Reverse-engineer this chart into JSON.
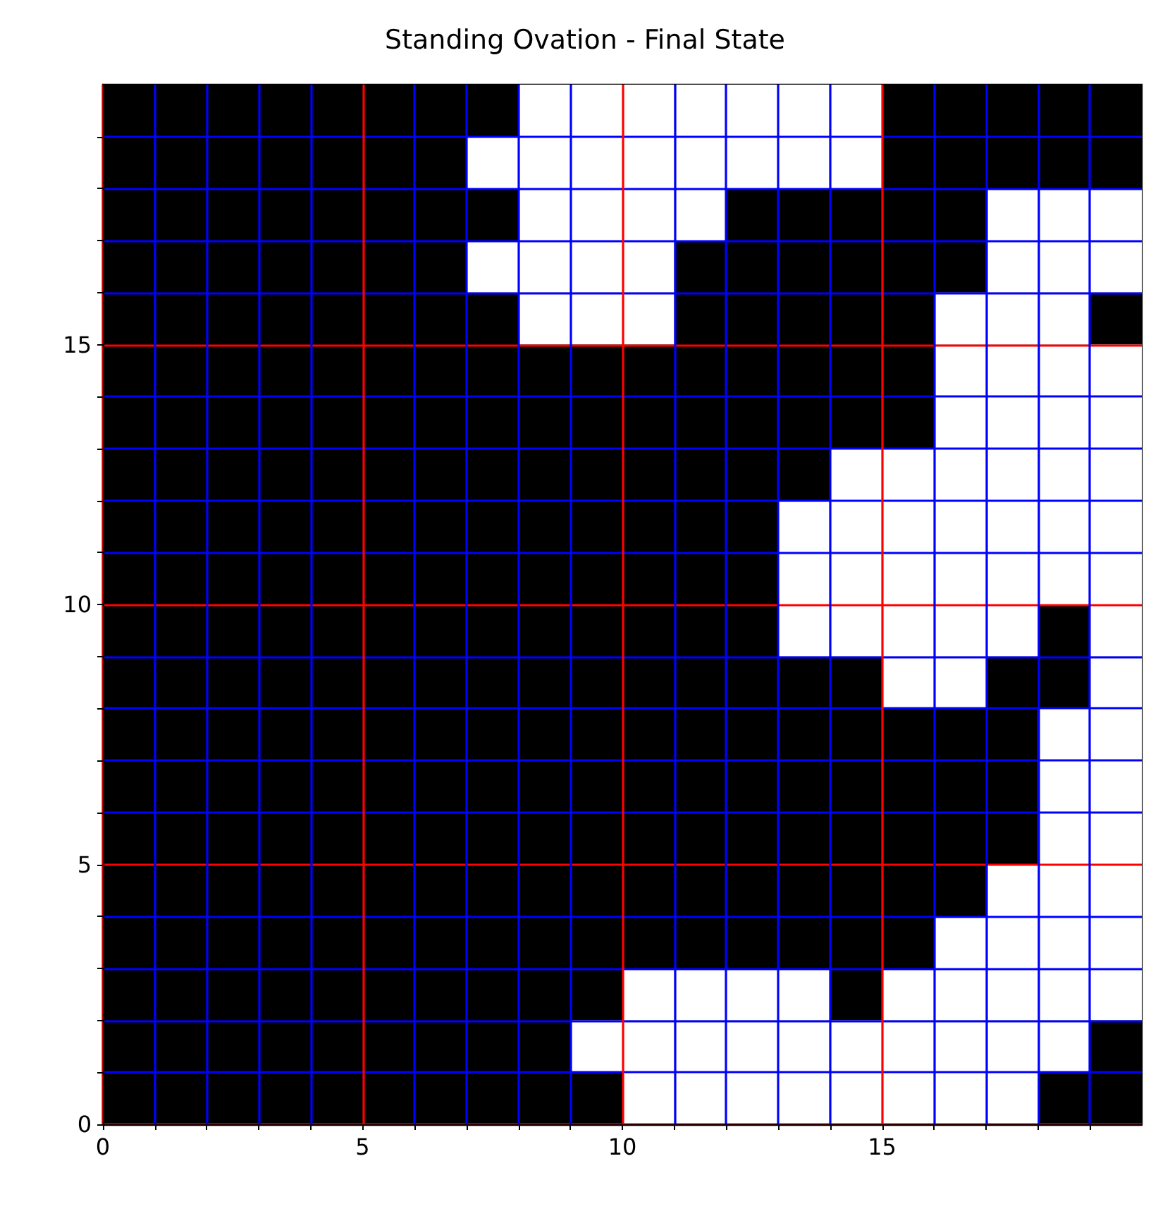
{
  "chart_data": {
    "type": "scatter",
    "title": "Standing Ovation - Final State",
    "xlim": [
      0,
      20
    ],
    "ylim": [
      0,
      20
    ],
    "xticks": [
      0,
      {
        "value": 1,
        "label": null
      },
      {
        "value": 2,
        "label": null
      },
      {
        "value": 3,
        "label": null
      },
      {
        "value": 4,
        "label": null
      },
      5,
      {
        "value": 6,
        "label": null
      },
      {
        "value": 7,
        "label": null
      },
      {
        "value": 8,
        "label": null
      },
      {
        "value": 9,
        "label": null
      },
      10,
      {
        "value": 11,
        "label": null
      },
      {
        "value": 12,
        "label": null
      },
      {
        "value": 13,
        "label": null
      },
      {
        "value": 14,
        "label": null
      },
      15,
      {
        "value": 16,
        "label": null
      },
      {
        "value": 17,
        "label": null
      },
      {
        "value": 18,
        "label": null
      },
      {
        "value": 19,
        "label": null
      }
    ],
    "yticks": [
      0,
      {
        "value": 1,
        "label": null
      },
      {
        "value": 2,
        "label": null
      },
      {
        "value": 3,
        "label": null
      },
      {
        "value": 4,
        "label": null
      },
      5,
      {
        "value": 6,
        "label": null
      },
      {
        "value": 7,
        "label": null
      },
      {
        "value": 8,
        "label": null
      },
      {
        "value": 9,
        "label": null
      },
      10,
      {
        "value": 11,
        "label": null
      },
      {
        "value": 12,
        "label": null
      },
      {
        "value": 13,
        "label": null
      },
      {
        "value": 14,
        "label": null
      },
      15,
      {
        "value": 16,
        "label": null
      },
      {
        "value": 17,
        "label": null
      },
      {
        "value": 18,
        "label": null
      },
      {
        "value": 19,
        "label": null
      }
    ],
    "grid": true,
    "marker": "square",
    "series": [
      {
        "color": "#ffffff",
        "x": [
          10.5,
          11.5,
          12.5,
          13.5,
          14.5,
          15.5,
          16.5,
          17.5,
          9.5,
          10.5,
          11.5,
          12.5,
          13.5,
          14.5,
          15.5,
          16.5,
          17.5,
          18.5,
          10.5,
          11.5,
          12.5,
          13.5,
          15.5,
          16.5,
          17.5,
          18.5,
          19.5,
          16.5,
          17.5,
          18.5,
          19.5,
          17.5,
          18.5,
          19.5,
          18.5,
          19.5,
          18.5,
          19.5,
          18.5,
          19.5,
          15.5,
          16.5,
          19.5,
          13.5,
          14.5,
          15.5,
          16.5,
          17.5,
          19.5,
          13.5,
          14.5,
          15.5,
          16.5,
          17.5,
          18.5,
          19.5,
          13.5,
          14.5,
          15.5,
          16.5,
          17.5,
          18.5,
          19.5,
          14.5,
          15.5,
          16.5,
          17.5,
          18.5,
          19.5,
          16.5,
          17.5,
          18.5,
          19.5,
          16.5,
          17.5,
          18.5,
          19.5,
          8.5,
          9.5,
          10.5,
          16.5,
          17.5,
          18.5,
          7.5,
          8.5,
          9.5,
          10.5,
          17.5,
          18.5,
          19.5,
          8.5,
          9.5,
          10.5,
          11.5,
          17.5,
          18.5,
          19.5,
          7.5,
          8.5,
          9.5,
          10.5,
          11.5,
          12.5,
          13.5,
          14.5,
          8.5,
          9.5,
          10.5,
          11.5,
          12.5,
          13.5,
          14.5
        ],
        "values": [
          0.5,
          0.5,
          0.5,
          0.5,
          0.5,
          0.5,
          0.5,
          0.5,
          1.5,
          1.5,
          1.5,
          1.5,
          1.5,
          1.5,
          1.5,
          1.5,
          1.5,
          1.5,
          2.5,
          2.5,
          2.5,
          2.5,
          2.5,
          2.5,
          2.5,
          2.5,
          2.5,
          3.5,
          3.5,
          3.5,
          3.5,
          4.5,
          4.5,
          4.5,
          5.5,
          5.5,
          6.5,
          6.5,
          7.5,
          7.5,
          8.5,
          8.5,
          8.5,
          9.5,
          9.5,
          9.5,
          9.5,
          9.5,
          9.5,
          10.5,
          10.5,
          10.5,
          10.5,
          10.5,
          10.5,
          10.5,
          11.5,
          11.5,
          11.5,
          11.5,
          11.5,
          11.5,
          11.5,
          12.5,
          12.5,
          12.5,
          12.5,
          12.5,
          12.5,
          13.5,
          13.5,
          13.5,
          13.5,
          14.5,
          14.5,
          14.5,
          14.5,
          15.5,
          15.5,
          15.5,
          15.5,
          15.5,
          15.5,
          16.5,
          16.5,
          16.5,
          16.5,
          16.5,
          16.5,
          16.5,
          17.5,
          17.5,
          17.5,
          17.5,
          17.5,
          17.5,
          17.5,
          18.5,
          18.5,
          18.5,
          18.5,
          18.5,
          18.5,
          18.5,
          18.5,
          19.5,
          19.5,
          19.5,
          19.5,
          19.5,
          19.5,
          19.5
        ]
      }
    ]
  }
}
